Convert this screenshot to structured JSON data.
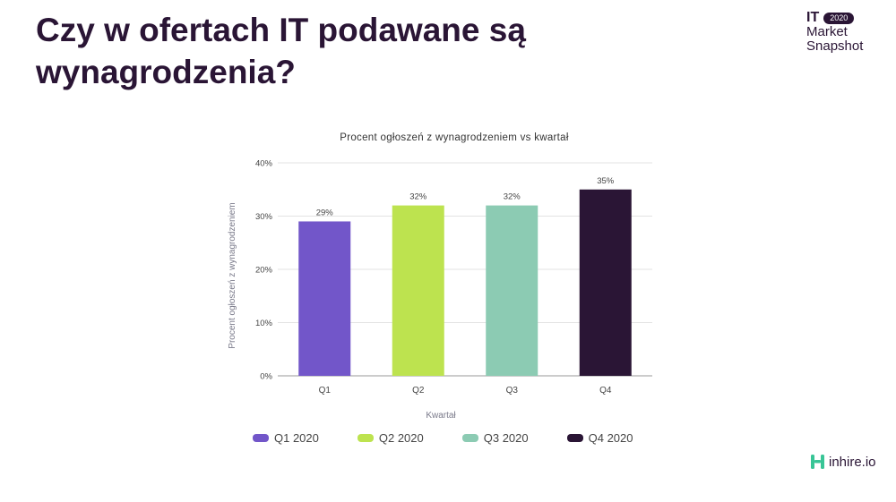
{
  "page": {
    "title": "Czy w ofertach IT podawane są wynagrodzenia?"
  },
  "brand": {
    "it": "IT",
    "year": "2020",
    "line1": "Market",
    "line2": "Snapshot"
  },
  "logo": {
    "text": "inhire.io"
  },
  "colors": {
    "title": "#2a1535",
    "q1": "#7256c9",
    "q2": "#bde34f",
    "q3": "#8ccbb3",
    "q4": "#2a1535",
    "logo_accent": "#39c596"
  },
  "chart_data": {
    "type": "bar",
    "title": "Procent ogłoszeń z wynagrodzeniem vs kwartał",
    "xlabel": "Kwartał",
    "ylabel": "Procent ogłoszeń z wynagrodzeniem",
    "categories": [
      "Q1",
      "Q2",
      "Q3",
      "Q4"
    ],
    "values": [
      29,
      32,
      32,
      35
    ],
    "data_labels": [
      "29%",
      "32%",
      "32%",
      "35%"
    ],
    "ylim": [
      0,
      40
    ],
    "yticks": [
      {
        "value": 0,
        "label": "0%"
      },
      {
        "value": 10,
        "label": "10%"
      },
      {
        "value": 20,
        "label": "20%"
      },
      {
        "value": 30,
        "label": "30%"
      },
      {
        "value": 40,
        "label": "40%"
      }
    ],
    "grid": true,
    "legend_position": "bottom",
    "legend": [
      "Q1 2020",
      "Q2 2020",
      "Q3 2020",
      "Q4 2020"
    ],
    "bar_colors": [
      "#7256c9",
      "#bde34f",
      "#8ccbb3",
      "#2a1535"
    ]
  }
}
